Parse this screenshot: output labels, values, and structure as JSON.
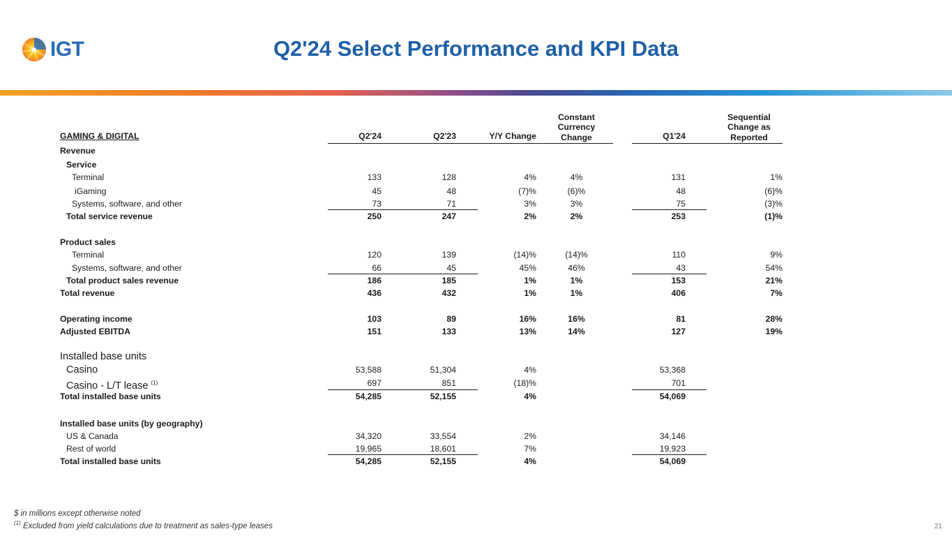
{
  "header": {
    "logo_text": "IGT",
    "title": "Q2'24 Select Performance and KPI Data"
  },
  "columns": {
    "section": "GAMING & DIGITAL",
    "c1": "Q2'24",
    "c2": "Q2'23",
    "c3": "Y/Y Change",
    "c4_l1": "Constant",
    "c4_l2": "Currency",
    "c4_l3": "Change",
    "c5": "Q1'24",
    "c6_l1": "Sequential",
    "c6_l2": "Change as",
    "c6_l3": "Reported"
  },
  "rows": [
    {
      "label": "Revenue",
      "v": [
        "",
        "",
        "",
        "",
        "",
        ""
      ]
    },
    {
      "label": "Service",
      "v": [
        "",
        "",
        "",
        "",
        "",
        ""
      ]
    },
    {
      "label": "Terminal",
      "v": [
        "133",
        "128",
        "4%",
        "4%",
        "131",
        "1%"
      ]
    },
    {
      "label": "iGaming",
      "v": [
        "45",
        "48",
        "(7)%",
        "(6)%",
        "48",
        "(6)%"
      ]
    },
    {
      "label": "Systems, software, and other",
      "v": [
        "73",
        "71",
        "3%",
        "3%",
        "75",
        "(3)%"
      ]
    },
    {
      "label": "Total service revenue",
      "v": [
        "250",
        "247",
        "2%",
        "2%",
        "253",
        "(1)%"
      ]
    },
    {
      "label": "Product sales",
      "v": [
        "",
        "",
        "",
        "",
        "",
        ""
      ]
    },
    {
      "label": "Terminal",
      "v": [
        "120",
        "139",
        "(14)%",
        "(14)%",
        "110",
        "9%"
      ]
    },
    {
      "label": "Systems, software, and other",
      "v": [
        "66",
        "45",
        "45%",
        "46%",
        "43",
        "54%"
      ]
    },
    {
      "label": "Total product sales revenue",
      "v": [
        "186",
        "185",
        "1%",
        "1%",
        "153",
        "21%"
      ]
    },
    {
      "label": "Total revenue",
      "v": [
        "436",
        "432",
        "1%",
        "1%",
        "406",
        "7%"
      ]
    },
    {
      "label": "Operating income",
      "v": [
        "103",
        "89",
        "16%",
        "16%",
        "81",
        "28%"
      ]
    },
    {
      "label": "Adjusted EBITDA",
      "v": [
        "151",
        "133",
        "13%",
        "14%",
        "127",
        "19%"
      ]
    },
    {
      "label": "Installed base units",
      "v": [
        "",
        "",
        "",
        "",
        "",
        ""
      ]
    },
    {
      "label": "Casino",
      "v": [
        "53,588",
        "51,304",
        "4%",
        "",
        "53,368",
        ""
      ]
    },
    {
      "label": "Casino - L/T lease",
      "note": "(1)",
      "v": [
        "697",
        "851",
        "(18)%",
        "",
        "701",
        ""
      ]
    },
    {
      "label": "Total installed base units",
      "v": [
        "54,285",
        "52,155",
        "4%",
        "",
        "54,069",
        ""
      ]
    },
    {
      "label": "Installed base units (by geography)",
      "v": [
        "",
        "",
        "",
        "",
        "",
        ""
      ]
    },
    {
      "label": "US & Canada",
      "v": [
        "34,320",
        "33,554",
        "2%",
        "",
        "34,146",
        ""
      ]
    },
    {
      "label": "Rest of world",
      "v": [
        "19,965",
        "18,601",
        "7%",
        "",
        "19,923",
        ""
      ]
    },
    {
      "label": "Total installed base units",
      "v": [
        "54,285",
        "52,155",
        "4%",
        "",
        "54,069",
        ""
      ]
    }
  ],
  "footer": {
    "note1": "$ in millions except otherwise noted",
    "note2_mark": "(1)",
    "note2": "Excluded from yield calculations due to treatment as sales-type leases",
    "page_number": "21"
  },
  "colors": {
    "title": "#1f5fa8",
    "logo_blue": "#2a6cb5"
  }
}
